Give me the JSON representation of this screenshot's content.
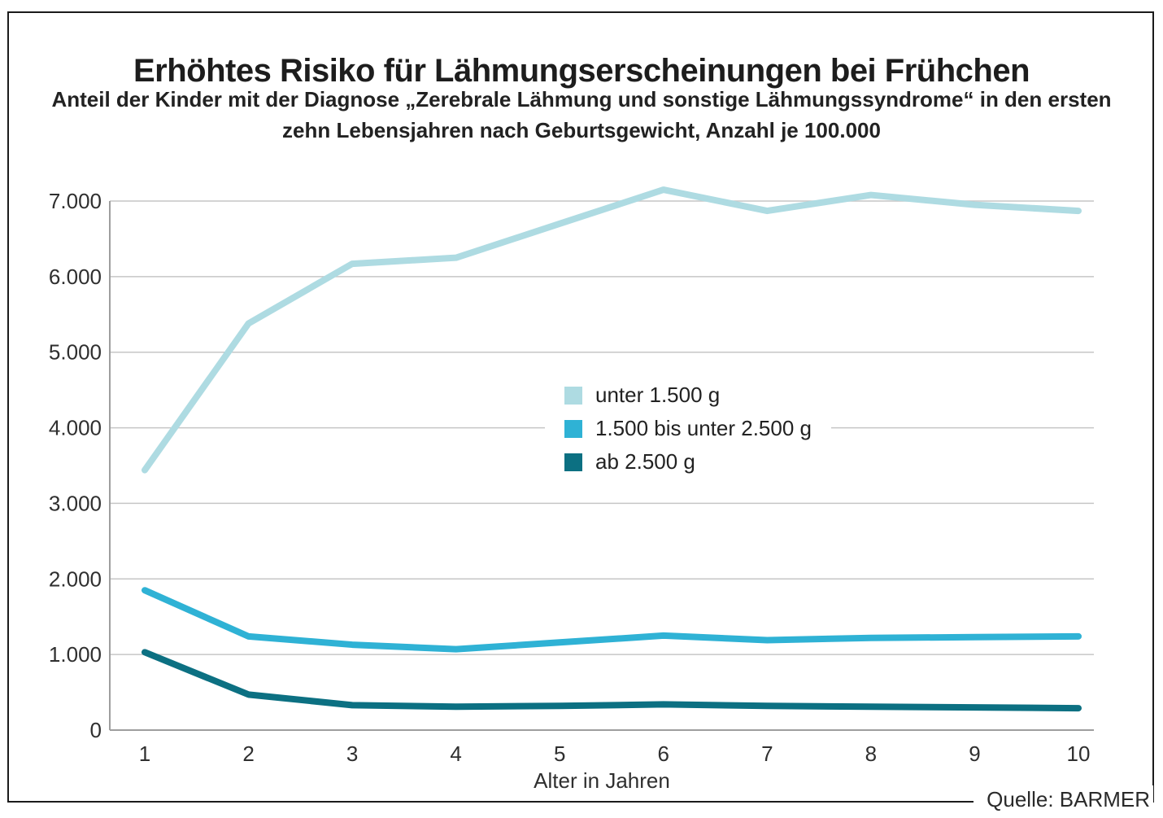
{
  "chart_data": {
    "type": "line",
    "title": "Erhöhtes Risiko für Lähmungserscheinungen bei Frühchen",
    "subtitle": "Anteil der Kinder mit der Diagnose „Zerebrale Lähmung und sonstige Lähmungssyndrome“ in den ersten zehn Lebensjahren nach Geburtsgewicht, Anzahl je 100.000",
    "xlabel": "Alter in Jahren",
    "source": "Quelle: BARMER",
    "x": [
      1,
      2,
      3,
      4,
      5,
      6,
      7,
      8,
      9,
      10
    ],
    "x_labels": [
      "1",
      "2",
      "3",
      "4",
      "5",
      "6",
      "7",
      "8",
      "9",
      "10"
    ],
    "ylim": [
      0,
      7000
    ],
    "ytick_step": 1000,
    "ytick_labels": [
      "0",
      "1.000",
      "2.000",
      "3.000",
      "4.000",
      "5.000",
      "6.000",
      "7.000"
    ],
    "grid": "horizontal",
    "legend_position": "center",
    "series": [
      {
        "name": "unter 1.500 g",
        "color": "#aedbe2",
        "values": [
          3440,
          5380,
          6170,
          6250,
          6700,
          7150,
          6870,
          7080,
          6950,
          6870
        ]
      },
      {
        "name": "1.500 bis unter 2.500 g",
        "color": "#2fb2d5",
        "values": [
          1850,
          1240,
          1130,
          1070,
          1160,
          1250,
          1190,
          1220,
          1230,
          1240
        ]
      },
      {
        "name": "ab 2.500 g",
        "color": "#0c7082",
        "values": [
          1030,
          470,
          330,
          310,
          320,
          340,
          320,
          310,
          300,
          290
        ]
      }
    ],
    "colors": {
      "grid": "#c6c6c6",
      "axis": "#9e9e9e",
      "tick_text": "#2f2f2f",
      "title_text": "#1d1d1d"
    }
  }
}
